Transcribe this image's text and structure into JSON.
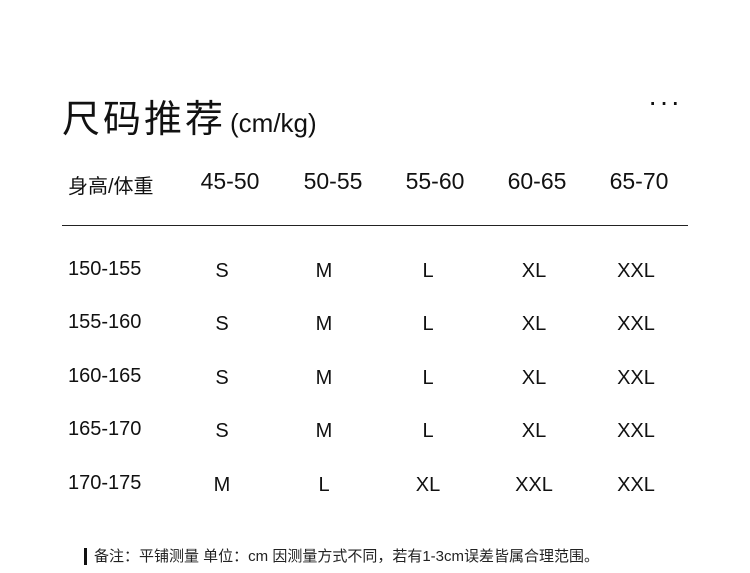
{
  "title": "尺码推荐",
  "unit": "(cm/kg)",
  "more_icon": "ellipsis-icon",
  "table": {
    "corner_label": "身高/体重",
    "columns": [
      "45-50",
      "50-55",
      "55-60",
      "60-65",
      "65-70"
    ],
    "rows": [
      {
        "height": "150-155",
        "sizes": [
          "S",
          "M",
          "L",
          "XL",
          "XXL"
        ]
      },
      {
        "height": "155-160",
        "sizes": [
          "S",
          "M",
          "L",
          "XL",
          "XXL"
        ]
      },
      {
        "height": "160-165",
        "sizes": [
          "S",
          "M",
          "L",
          "XL",
          "XXL"
        ]
      },
      {
        "height": "165-170",
        "sizes": [
          "S",
          "M",
          "L",
          "XL",
          "XXL"
        ]
      },
      {
        "height": "170-175",
        "sizes": [
          "M",
          "L",
          "XL",
          "XXL",
          "XXL"
        ]
      }
    ]
  },
  "note": "备注：平铺测量 单位：cm  因测量方式不同，若有1-3cm误差皆属合理范围。"
}
